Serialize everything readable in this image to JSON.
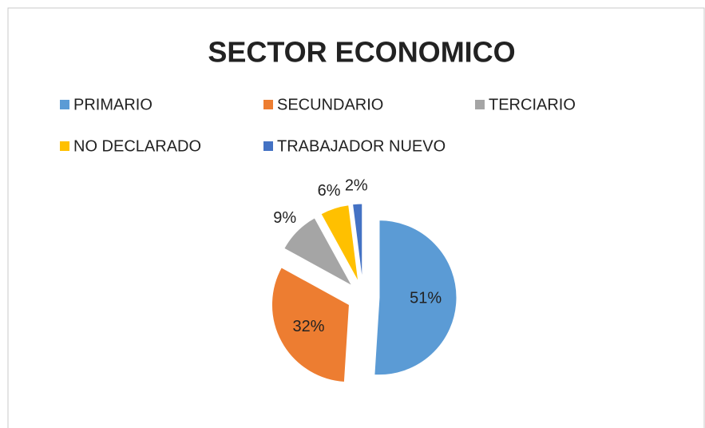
{
  "chart_data": {
    "type": "pie",
    "title": "SECTOR ECONOMICO",
    "categories": [
      "PRIMARIO",
      "SECUNDARIO",
      "TERCIARIO",
      "NO DECLARADO",
      "TRABAJADOR NUEVO"
    ],
    "values": [
      51,
      32,
      9,
      6,
      2
    ],
    "value_labels": [
      "51%",
      "32%",
      "9%",
      "6%",
      "2%"
    ],
    "colors": [
      "#5b9bd5",
      "#ed7d31",
      "#a5a5a5",
      "#ffc000",
      "#4472c4"
    ],
    "legend": "top"
  }
}
